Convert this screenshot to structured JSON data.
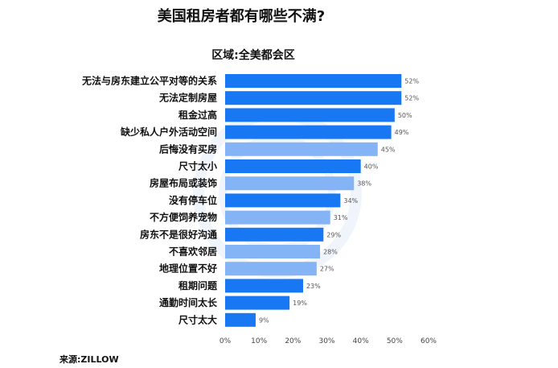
{
  "title": "美国租房者都有哪些不满?",
  "subtitle": "区域:全美都会区",
  "source": "来源:ZILLOW",
  "colors": {
    "bar_dark": "#1877f2",
    "bar_light": "#85b4f6"
  },
  "chart_data": {
    "type": "bar",
    "orientation": "horizontal",
    "categories": [
      "无法与房东建立公平对等的关系",
      "无法定制房屋",
      "租金过高",
      "缺少私人户外活动空间",
      "后悔没有买房",
      "尺寸太小",
      "房屋布局或装饰",
      "没有停车位",
      "不方便饲养宠物",
      "房东不是很好沟通",
      "不喜欢邻居",
      "地理位置不好",
      "租期问题",
      "通勤时间太长",
      "尺寸太大"
    ],
    "values": [
      52,
      52,
      50,
      49,
      45,
      40,
      38,
      34,
      31,
      29,
      28,
      27,
      23,
      19,
      9
    ],
    "value_labels": [
      "52%",
      "52%",
      "50%",
      "49%",
      "45%",
      "40%",
      "38%",
      "34%",
      "31%",
      "29%",
      "28%",
      "27%",
      "23%",
      "19%",
      "9%"
    ],
    "x_ticks": [
      "0%",
      "10%",
      "20%",
      "30%",
      "40%",
      "50%",
      "60%"
    ],
    "xlim": [
      0,
      60
    ],
    "grid": false,
    "legend": "none"
  }
}
